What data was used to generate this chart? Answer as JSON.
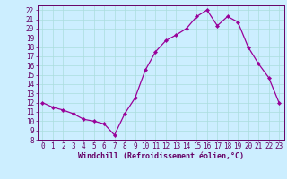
{
  "x": [
    0,
    1,
    2,
    3,
    4,
    5,
    6,
    7,
    8,
    9,
    10,
    11,
    12,
    13,
    14,
    15,
    16,
    17,
    18,
    19,
    20,
    21,
    22,
    23
  ],
  "y": [
    12,
    11.5,
    11.2,
    10.8,
    10.2,
    10.0,
    9.7,
    8.5,
    10.8,
    12.5,
    15.5,
    17.5,
    18.7,
    19.3,
    20.0,
    21.3,
    22.0,
    20.3,
    21.3,
    20.7,
    18.0,
    16.2,
    14.7,
    12.0
  ],
  "line_color": "#990099",
  "marker": "D",
  "marker_size": 2.2,
  "bg_color": "#cceeff",
  "grid_color": "#aadddd",
  "axis_color": "#660066",
  "tick_color": "#660066",
  "xlabel": "Windchill (Refroidissement éolien,°C)",
  "ylim": [
    8,
    22.5
  ],
  "xlim": [
    -0.5,
    23.5
  ],
  "yticks": [
    8,
    9,
    10,
    11,
    12,
    13,
    14,
    15,
    16,
    17,
    18,
    19,
    20,
    21,
    22
  ],
  "xticks": [
    0,
    1,
    2,
    3,
    4,
    5,
    6,
    7,
    8,
    9,
    10,
    11,
    12,
    13,
    14,
    15,
    16,
    17,
    18,
    19,
    20,
    21,
    22,
    23
  ],
  "font_size": 5.5,
  "xlabel_size": 6.0,
  "linewidth": 0.9
}
